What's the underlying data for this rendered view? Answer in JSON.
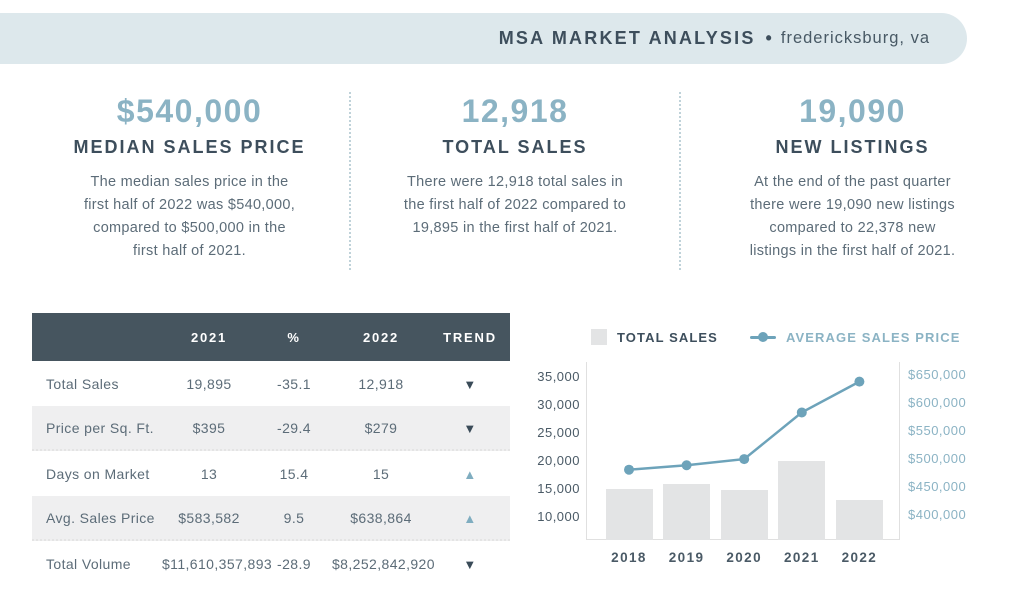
{
  "header": {
    "title": "MSA MARKET ANALYSIS",
    "separator": "•",
    "location": "fredericksburg, va"
  },
  "stats": [
    {
      "value": "$540,000",
      "label": "MEDIAN SALES PRICE",
      "description": [
        "The median sales price in the",
        "first half of 2022 was $540,000,",
        "compared to $500,000 in the",
        "first half of 2021."
      ]
    },
    {
      "value": "12,918",
      "label": "TOTAL SALES",
      "description": [
        "There were 12,918 total sales in",
        "the first half of 2022 compared to",
        "19,895 in the first half of 2021."
      ]
    },
    {
      "value": "19,090",
      "label": "NEW LISTINGS",
      "description": [
        "At the end of the past quarter",
        "there were 19,090 new listings",
        "compared to 22,378 new",
        "listings in the first half of 2021."
      ]
    }
  ],
  "table": {
    "headers": [
      "",
      "2021",
      "%",
      "2022",
      "TREND"
    ],
    "rows": [
      {
        "label": "Total Sales",
        "y2021": "19,895",
        "pct": "-35.1",
        "y2022": "12,918",
        "trend": "down"
      },
      {
        "label": "Price per Sq. Ft.",
        "y2021": "$395",
        "pct": "-29.4",
        "y2022": "$279",
        "trend": "down"
      },
      {
        "label": "Days on Market",
        "y2021": "13",
        "pct": "15.4",
        "y2022": "15",
        "trend": "up"
      },
      {
        "label": "Avg. Sales Price",
        "y2021": "$583,582",
        "pct": "9.5",
        "y2022": "$638,864",
        "trend": "up"
      },
      {
        "label": "Total Volume",
        "y2021": "$11,610,357,893",
        "pct": "-28.9",
        "y2022": "$8,252,842,920",
        "trend": "down"
      }
    ]
  },
  "chart_data": {
    "type": "bar+line combo",
    "categories": [
      "2018",
      "2019",
      "2020",
      "2021",
      "2022"
    ],
    "series": [
      {
        "name": "TOTAL SALES",
        "type": "bar",
        "axis": "left",
        "color": "#e3e4e5",
        "values": [
          15000,
          15800,
          14800,
          19895,
          12918
        ]
      },
      {
        "name": "AVERAGE SALES PRICE",
        "type": "line",
        "axis": "right",
        "color": "#6da3ba",
        "values": [
          481000,
          489000,
          500000,
          583582,
          638864
        ]
      }
    ],
    "left_axis": {
      "ticks": [
        "35,000",
        "30,000",
        "25,000",
        "20,000",
        "15,000",
        "10,000"
      ],
      "min": 5800,
      "max": 37700
    },
    "right_axis": {
      "ticks": [
        "$650,000",
        "$600,000",
        "$550,000",
        "$500,000",
        "$450,000",
        "$400,000"
      ],
      "min": 355000,
      "max": 674000
    },
    "legend_position": "top",
    "grid": false
  },
  "colors": {
    "header_bg": "#dde8ec",
    "accent_blue": "#8bb3c4",
    "dark_slate": "#3d4e5c",
    "body_text": "#5c6c78",
    "table_header_bg": "#46555f",
    "row_alt_bg": "#efeff0",
    "trend_up": "#7fadc0",
    "trend_down": "#3a4b58"
  }
}
